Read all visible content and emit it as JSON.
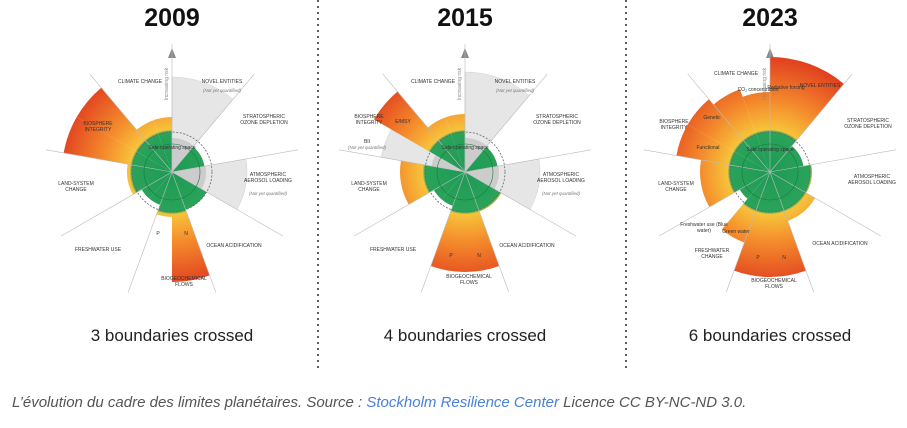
{
  "panels": [
    {
      "year": "2009",
      "axis_label": "Increasing risk",
      "caption": "3 boundaries crossed",
      "labels": [
        "CLIMATE CHANGE",
        "NOVEL ENTITIES",
        "(Not yet quantified)",
        "STRATOSPHERIC OZONE DEPLETION",
        "ATMOSPHERIC AEROSOL LOADING",
        "(Not yet quantified)",
        "OCEAN ACIDIFICATION",
        "BIOGEOCHEMICAL FLOWS",
        "P",
        "N",
        "FRESHWATER USE",
        "LAND-SYSTEM CHANGE",
        "BIOSPHERE INTEGRITY",
        "Safe operating space"
      ]
    },
    {
      "year": "2015",
      "axis_label": "Increasing risk",
      "caption": "4 boundaries crossed",
      "labels": [
        "CLIMATE CHANGE",
        "NOVEL ENTITIES",
        "(Not yet quantified)",
        "STRATOSPHERIC OZONE DEPLETION",
        "ATMOSPHERIC AEROSOL LOADING",
        "(Not yet quantified)",
        "OCEAN ACIDIFICATION",
        "BIOGEOCHEMICAL FLOWS",
        "P",
        "N",
        "FRESHWATER USE",
        "LAND-SYSTEM CHANGE",
        "BIOSPHERE INTEGRITY",
        "E/MSY",
        "BII",
        "(Not yet quantified)",
        "Safe operating space"
      ]
    },
    {
      "year": "2023",
      "axis_label": "Increasing risk",
      "caption": "6 boundaries crossed",
      "labels": [
        "CLIMATE CHANGE",
        "CO₂ concentration",
        "Radiative forcing",
        "NOVEL ENTITIES",
        "STRATOSPHERIC OZONE DEPLETION",
        "ATMOSPHERIC AEROSOL LOADING",
        "OCEAN ACIDIFICATION",
        "BIOGEOCHEMICAL FLOWS",
        "P",
        "N",
        "FRESHWATER CHANGE",
        "Freshwater use (Blue water)",
        "Green water",
        "LAND-SYSTEM CHANGE",
        "BIOSPHERE INTEGRITY",
        "Genetic",
        "Functional",
        "Safe operating space"
      ]
    }
  ],
  "source": {
    "prefix": "L’évolution du cadre des limites planétaires. Source :",
    "link": "Stockholm Resilience Center",
    "suffix": "Licence CC BY-NC-ND 3.0."
  }
}
